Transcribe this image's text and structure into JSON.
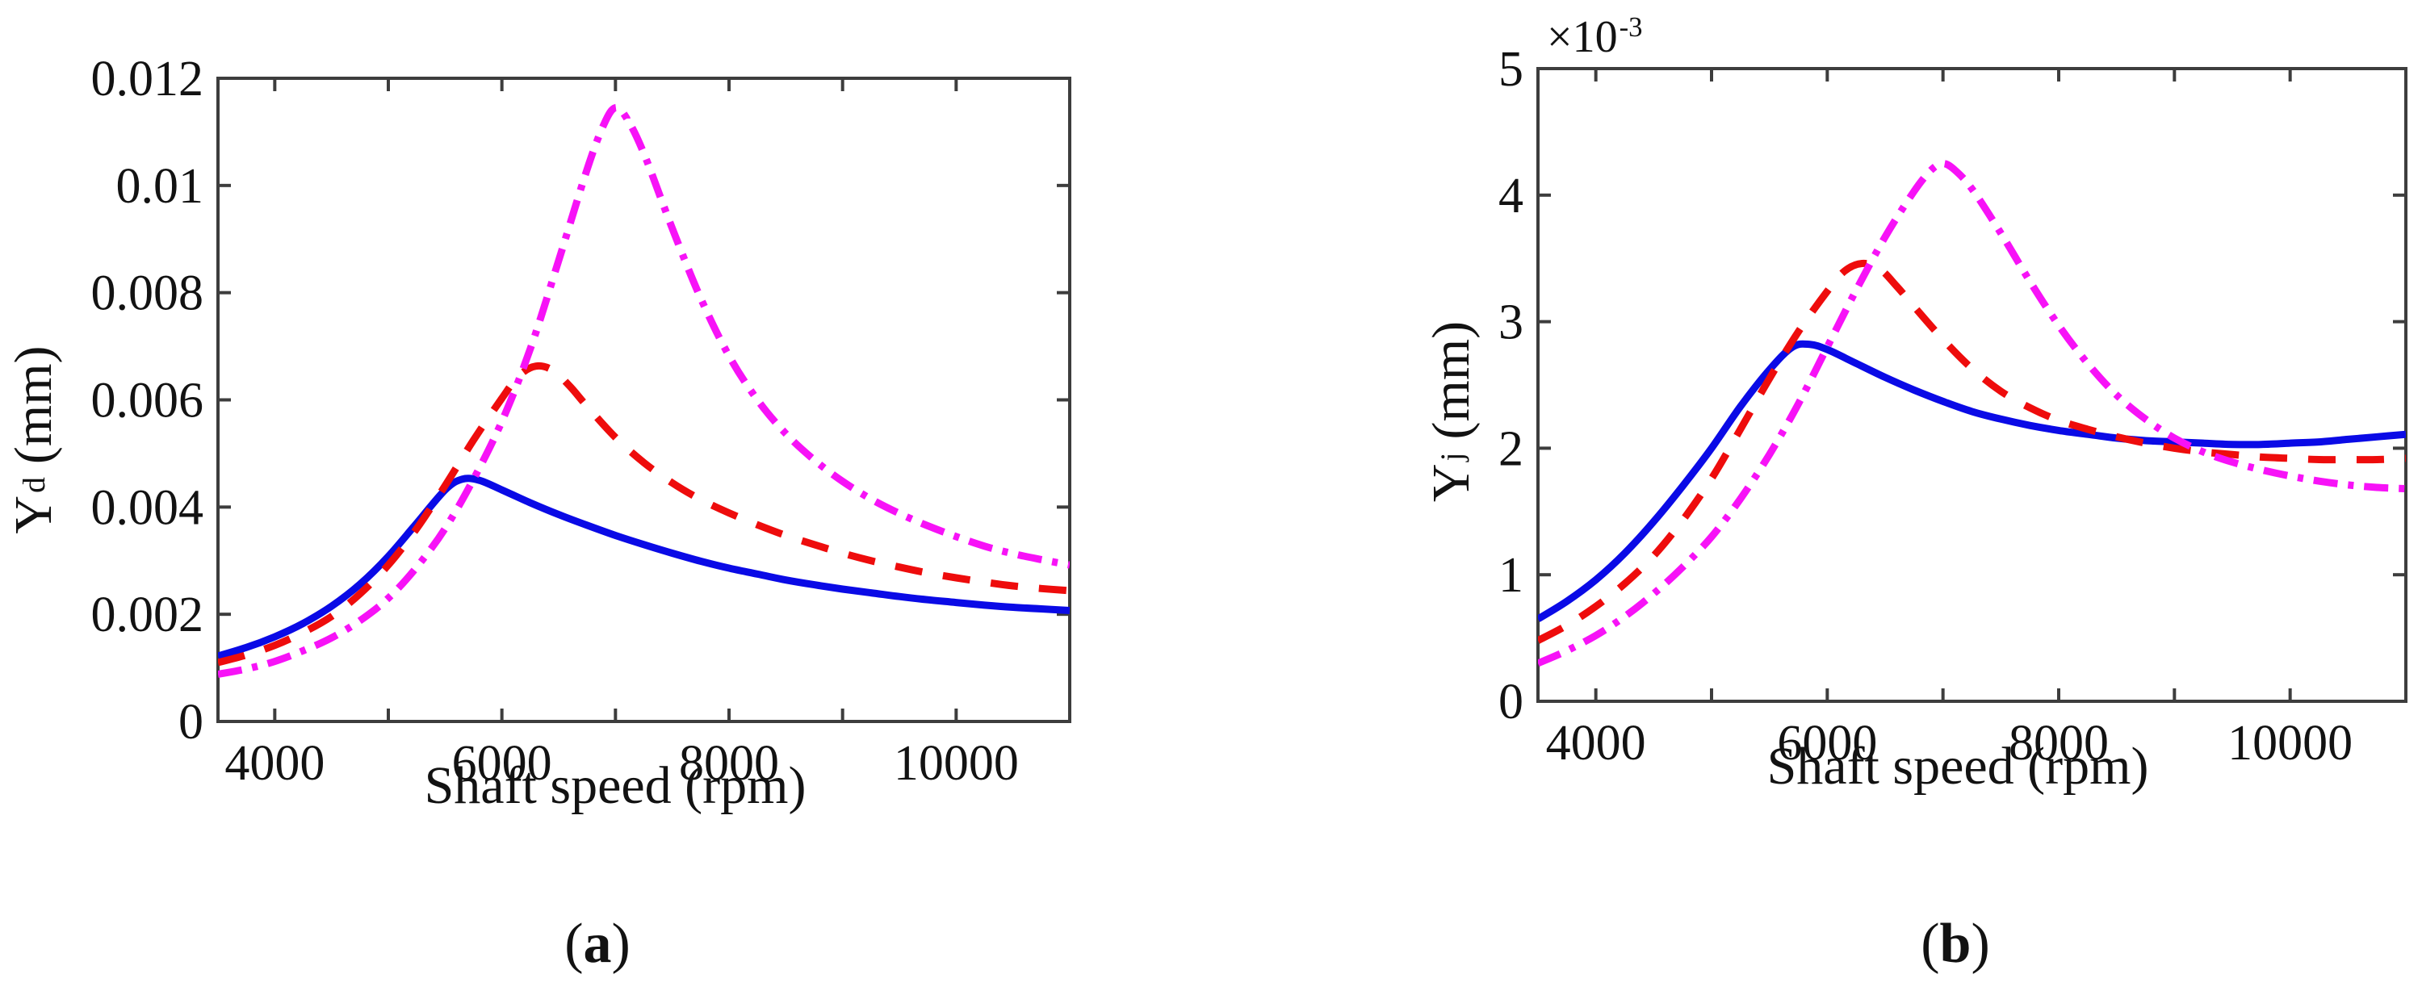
{
  "figure": {
    "captions": {
      "a": {
        "open": "(",
        "letter": "a",
        "close": ")"
      },
      "b": {
        "open": "(",
        "letter": "b",
        "close": ")"
      }
    }
  },
  "chart_data": [
    {
      "id": "a",
      "type": "line",
      "title": "",
      "xlabel": "Shaft speed (rpm)",
      "ylabel": {
        "base": "Y",
        "sub": "d",
        "unit": "(mm)"
      },
      "xlim": [
        3500,
        11000
      ],
      "ylim": [
        0,
        0.012
      ],
      "xticks": [
        4000,
        6000,
        8000,
        10000
      ],
      "xtick_labels": [
        "4000",
        "6000",
        "8000",
        "10000"
      ],
      "xticks_minor": [
        5000,
        7000,
        9000
      ],
      "yticks": [
        0,
        0.002,
        0.004,
        0.006,
        0.008,
        0.01,
        0.012
      ],
      "ytick_labels": [
        "0",
        "0.002",
        "0.004",
        "0.006",
        "0.008",
        "0.01",
        "0.012"
      ],
      "grid": false,
      "legend": "none",
      "series": [
        {
          "name": "blue-solid",
          "color": "#0a0ae6",
          "style": "solid",
          "points": [
            [
              3500,
              0.00122
            ],
            [
              3750,
              0.00138
            ],
            [
              4000,
              0.00158
            ],
            [
              4250,
              0.00183
            ],
            [
              4500,
              0.00215
            ],
            [
              4750,
              0.00256
            ],
            [
              5000,
              0.00308
            ],
            [
              5250,
              0.0037
            ],
            [
              5500,
              0.00432
            ],
            [
              5650,
              0.00452
            ],
            [
              5800,
              0.0045
            ],
            [
              6000,
              0.00432
            ],
            [
              6250,
              0.00408
            ],
            [
              6500,
              0.00386
            ],
            [
              6750,
              0.00366
            ],
            [
              7000,
              0.00347
            ],
            [
              7250,
              0.0033
            ],
            [
              7500,
              0.00314
            ],
            [
              7750,
              0.00299
            ],
            [
              8000,
              0.00286
            ],
            [
              8250,
              0.00275
            ],
            [
              8500,
              0.00264
            ],
            [
              8750,
              0.00255
            ],
            [
              9000,
              0.00247
            ],
            [
              9250,
              0.0024
            ],
            [
              9500,
              0.00233
            ],
            [
              9750,
              0.00227
            ],
            [
              10000,
              0.00222
            ],
            [
              10250,
              0.00217
            ],
            [
              10500,
              0.00213
            ],
            [
              10750,
              0.0021
            ],
            [
              11000,
              0.00207
            ]
          ]
        },
        {
          "name": "red-dashed",
          "color": "#ee0c0c",
          "style": "dashed",
          "points": [
            [
              3500,
              0.0011
            ],
            [
              3750,
              0.00124
            ],
            [
              4000,
              0.00142
            ],
            [
              4250,
              0.00166
            ],
            [
              4500,
              0.00196
            ],
            [
              4750,
              0.00238
            ],
            [
              5000,
              0.00292
            ],
            [
              5250,
              0.0036
            ],
            [
              5500,
              0.0044
            ],
            [
              5750,
              0.00525
            ],
            [
              6000,
              0.00603
            ],
            [
              6150,
              0.00645
            ],
            [
              6300,
              0.00663
            ],
            [
              6450,
              0.00655
            ],
            [
              6600,
              0.00625
            ],
            [
              6750,
              0.00588
            ],
            [
              7000,
              0.0053
            ],
            [
              7250,
              0.00483
            ],
            [
              7500,
              0.00445
            ],
            [
              7750,
              0.00414
            ],
            [
              8000,
              0.00389
            ],
            [
              8250,
              0.00367
            ],
            [
              8500,
              0.00347
            ],
            [
              8750,
              0.0033
            ],
            [
              9000,
              0.00314
            ],
            [
              9250,
              0.003
            ],
            [
              9500,
              0.00288
            ],
            [
              9750,
              0.00277
            ],
            [
              10000,
              0.00268
            ],
            [
              10250,
              0.0026
            ],
            [
              10500,
              0.00253
            ],
            [
              10750,
              0.00248
            ],
            [
              11000,
              0.00244
            ]
          ]
        },
        {
          "name": "magenta-dashdot",
          "color": "#f712f7",
          "style": "dashdot",
          "points": [
            [
              3500,
              0.00088
            ],
            [
              3750,
              0.00098
            ],
            [
              4000,
              0.00112
            ],
            [
              4250,
              0.00132
            ],
            [
              4500,
              0.00156
            ],
            [
              4750,
              0.00188
            ],
            [
              5000,
              0.0023
            ],
            [
              5250,
              0.00288
            ],
            [
              5500,
              0.0036
            ],
            [
              5750,
              0.00452
            ],
            [
              6000,
              0.0056
            ],
            [
              6250,
              0.00695
            ],
            [
              6500,
              0.0086
            ],
            [
              6750,
              0.0103
            ],
            [
              6900,
              0.01115
            ],
            [
              7000,
              0.01145
            ],
            [
              7100,
              0.01125
            ],
            [
              7250,
              0.0106
            ],
            [
              7500,
              0.0092
            ],
            [
              7750,
              0.0079
            ],
            [
              8000,
              0.00682
            ],
            [
              8250,
              0.006
            ],
            [
              8500,
              0.00537
            ],
            [
              8750,
              0.00488
            ],
            [
              9000,
              0.00448
            ],
            [
              9250,
              0.00415
            ],
            [
              9500,
              0.00388
            ],
            [
              9750,
              0.00365
            ],
            [
              10000,
              0.00345
            ],
            [
              10250,
              0.00327
            ],
            [
              10500,
              0.00313
            ],
            [
              10750,
              0.00302
            ],
            [
              11000,
              0.00292
            ]
          ]
        }
      ]
    },
    {
      "id": "b",
      "type": "line",
      "title": "",
      "xlabel": "Shaft speed (rpm)",
      "ylabel": {
        "base": "Y",
        "sub": "j",
        "unit": "(mm)"
      },
      "y_multiplier": {
        "base": "×10",
        "exp": "-3"
      },
      "xlim": [
        3500,
        11000
      ],
      "ylim": [
        0,
        5
      ],
      "xticks": [
        4000,
        6000,
        8000,
        10000
      ],
      "xtick_labels": [
        "4000",
        "6000",
        "8000",
        "10000"
      ],
      "xticks_minor": [
        5000,
        7000,
        9000
      ],
      "yticks": [
        0,
        1,
        2,
        3,
        4,
        5
      ],
      "ytick_labels": [
        "0",
        "1",
        "2",
        "3",
        "4",
        "5"
      ],
      "grid": false,
      "legend": "none",
      "units_note": "y values in 10^-3 mm",
      "series": [
        {
          "name": "blue-solid",
          "color": "#0a0ae6",
          "style": "solid",
          "points": [
            [
              3500,
              0.65
            ],
            [
              3750,
              0.79
            ],
            [
              4000,
              0.96
            ],
            [
              4250,
              1.17
            ],
            [
              4500,
              1.42
            ],
            [
              4750,
              1.7
            ],
            [
              5000,
              2.0
            ],
            [
              5250,
              2.33
            ],
            [
              5500,
              2.62
            ],
            [
              5700,
              2.8
            ],
            [
              5850,
              2.82
            ],
            [
              6000,
              2.78
            ],
            [
              6250,
              2.67
            ],
            [
              6500,
              2.56
            ],
            [
              6750,
              2.46
            ],
            [
              7000,
              2.37
            ],
            [
              7250,
              2.29
            ],
            [
              7500,
              2.23
            ],
            [
              7750,
              2.18
            ],
            [
              8000,
              2.14
            ],
            [
              8250,
              2.11
            ],
            [
              8500,
              2.08
            ],
            [
              8750,
              2.06
            ],
            [
              9000,
              2.05
            ],
            [
              9250,
              2.04
            ],
            [
              9500,
              2.03
            ],
            [
              9750,
              2.03
            ],
            [
              10000,
              2.04
            ],
            [
              10250,
              2.05
            ],
            [
              10500,
              2.07
            ],
            [
              10750,
              2.09
            ],
            [
              11000,
              2.11
            ]
          ]
        },
        {
          "name": "red-dashed",
          "color": "#ee0c0c",
          "style": "dashed",
          "points": [
            [
              3500,
              0.48
            ],
            [
              3750,
              0.6
            ],
            [
              4000,
              0.75
            ],
            [
              4250,
              0.93
            ],
            [
              4500,
              1.15
            ],
            [
              4750,
              1.43
            ],
            [
              5000,
              1.76
            ],
            [
              5250,
              2.15
            ],
            [
              5500,
              2.55
            ],
            [
              5750,
              2.92
            ],
            [
              6000,
              3.24
            ],
            [
              6150,
              3.4
            ],
            [
              6300,
              3.46
            ],
            [
              6450,
              3.42
            ],
            [
              6600,
              3.28
            ],
            [
              6750,
              3.12
            ],
            [
              7000,
              2.86
            ],
            [
              7250,
              2.63
            ],
            [
              7500,
              2.45
            ],
            [
              7750,
              2.32
            ],
            [
              8000,
              2.22
            ],
            [
              8250,
              2.15
            ],
            [
              8500,
              2.09
            ],
            [
              8750,
              2.04
            ],
            [
              9000,
              2.0
            ],
            [
              9250,
              1.97
            ],
            [
              9500,
              1.95
            ],
            [
              9750,
              1.93
            ],
            [
              10000,
              1.92
            ],
            [
              10250,
              1.91
            ],
            [
              10500,
              1.91
            ],
            [
              10750,
              1.91
            ],
            [
              11000,
              1.92
            ]
          ]
        },
        {
          "name": "magenta-dashdot",
          "color": "#f712f7",
          "style": "dashdot",
          "points": [
            [
              3500,
              0.3
            ],
            [
              3750,
              0.4
            ],
            [
              4000,
              0.52
            ],
            [
              4250,
              0.67
            ],
            [
              4500,
              0.85
            ],
            [
              4750,
              1.06
            ],
            [
              5000,
              1.3
            ],
            [
              5250,
              1.6
            ],
            [
              5500,
              1.95
            ],
            [
              5750,
              2.35
            ],
            [
              6000,
              2.8
            ],
            [
              6250,
              3.25
            ],
            [
              6500,
              3.67
            ],
            [
              6750,
              4.03
            ],
            [
              6900,
              4.2
            ],
            [
              7000,
              4.25
            ],
            [
              7100,
              4.2
            ],
            [
              7250,
              4.05
            ],
            [
              7500,
              3.7
            ],
            [
              7750,
              3.32
            ],
            [
              8000,
              2.97
            ],
            [
              8250,
              2.67
            ],
            [
              8500,
              2.42
            ],
            [
              8750,
              2.23
            ],
            [
              9000,
              2.08
            ],
            [
              9250,
              1.97
            ],
            [
              9500,
              1.89
            ],
            [
              9750,
              1.83
            ],
            [
              10000,
              1.78
            ],
            [
              10250,
              1.74
            ],
            [
              10500,
              1.71
            ],
            [
              10750,
              1.69
            ],
            [
              11000,
              1.68
            ]
          ]
        }
      ]
    }
  ]
}
